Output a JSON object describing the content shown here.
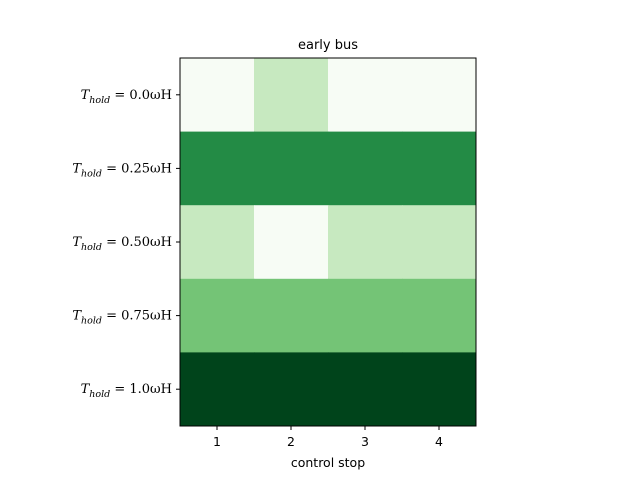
{
  "chart_data": {
    "type": "heatmap",
    "title": "early bus",
    "xlabel": "control stop",
    "ylabel": "",
    "x_categories": [
      "1",
      "2",
      "3",
      "4"
    ],
    "y_categories": [
      {
        "main": "T",
        "sub": "hold",
        "rest": " = 0.0ωH"
      },
      {
        "main": "T",
        "sub": "hold",
        "rest": " = 0.25ωH"
      },
      {
        "main": "T",
        "sub": "hold",
        "rest": " = 0.50ωH"
      },
      {
        "main": "T",
        "sub": "hold",
        "rest": " = 0.75ωH"
      },
      {
        "main": "T",
        "sub": "hold",
        "rest": " = 1.0ωH"
      }
    ],
    "values": [
      [
        0,
        1,
        0,
        0
      ],
      [
        3,
        3,
        3,
        3
      ],
      [
        1,
        0,
        1,
        1
      ],
      [
        2,
        2,
        2,
        2
      ],
      [
        4,
        4,
        4,
        4
      ]
    ],
    "colormap": "Greens",
    "level_colors": [
      "#f7fcf5",
      "#c7e9c0",
      "#74c476",
      "#238b45",
      "#00441b"
    ],
    "grid": false
  }
}
